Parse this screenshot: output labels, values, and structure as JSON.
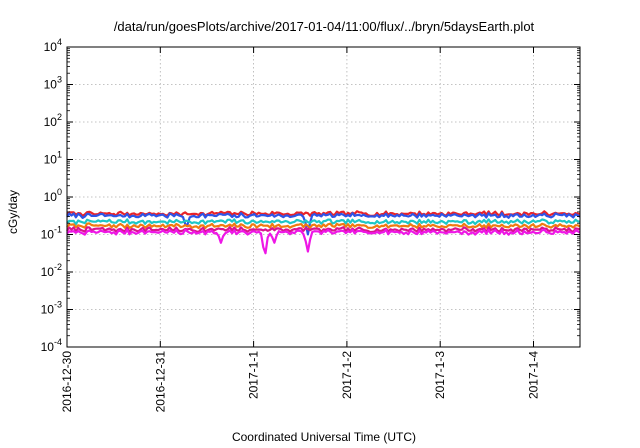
{
  "chart_data": {
    "type": "line",
    "title": "/data/run/goesPlots/archive/2017-01-04/11:00/flux/../bryn/5daysEarth.plot",
    "xlabel": "Coordinated Universal Time (UTC)",
    "ylabel": "cGy/day",
    "yscale": "log",
    "ylim": [
      0.0001,
      10000
    ],
    "yticks": [
      {
        "base": "10",
        "exp": "-4"
      },
      {
        "base": "10",
        "exp": "-3"
      },
      {
        "base": "10",
        "exp": "-2"
      },
      {
        "base": "10",
        "exp": "-1"
      },
      {
        "base": "10",
        "exp": "0"
      },
      {
        "base": "10",
        "exp": "1"
      },
      {
        "base": "10",
        "exp": "2"
      },
      {
        "base": "10",
        "exp": "3"
      },
      {
        "base": "10",
        "exp": "4"
      }
    ],
    "xlim": [
      "2016-12-30",
      "2017-01-04 11:00"
    ],
    "xticks": [
      "2016-12-30",
      "2016-12-31",
      "2017-1-1",
      "2017-1-2",
      "2017-1-3",
      "2017-1-4"
    ],
    "grid": true,
    "legend": "none",
    "series": [
      {
        "color": "#e8232a",
        "typical": 0.36,
        "dips": []
      },
      {
        "color": "#2f54e6",
        "typical": 0.32,
        "dips": [
          {
            "day": 2.58,
            "value": 0.1
          },
          {
            "day": 1.28,
            "value": 0.16
          }
        ]
      },
      {
        "color": "#1dc7c7",
        "typical": 0.22,
        "dips": []
      },
      {
        "color": "#f07a10",
        "typical": 0.17,
        "dips": []
      },
      {
        "color": "#d9148f",
        "typical": 0.135,
        "dips": []
      },
      {
        "color": "#ee17e6",
        "typical": 0.115,
        "dips": [
          {
            "day": 2.12,
            "value": 0.028
          },
          {
            "day": 2.58,
            "value": 0.035
          },
          {
            "day": 1.65,
            "value": 0.06
          },
          {
            "day": 2.22,
            "value": 0.06
          }
        ]
      }
    ]
  }
}
